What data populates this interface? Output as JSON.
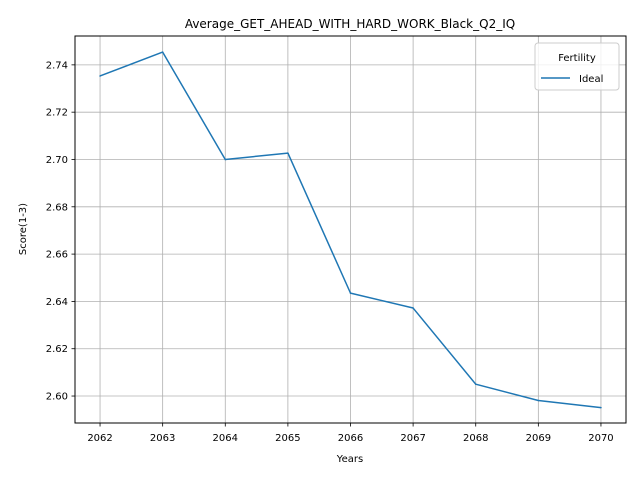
{
  "chart_data": {
    "type": "line",
    "title": "Average_GET_AHEAD_WITH_HARD_WORK_Black_Q2_IQ",
    "xlabel": "Years",
    "ylabel": "Score(1-3)",
    "x": [
      2062,
      2063,
      2064,
      2065,
      2066,
      2067,
      2068,
      2069,
      2070
    ],
    "xlim": [
      2061.6,
      2070.4
    ],
    "ylim": [
      2.5886,
      2.7522
    ],
    "x_ticks": [
      "2062",
      "2063",
      "2064",
      "2065",
      "2066",
      "2067",
      "2068",
      "2069",
      "2070"
    ],
    "y_ticks": [
      2.6,
      2.62,
      2.64,
      2.66,
      2.68,
      2.7,
      2.72,
      2.74
    ],
    "y_tick_labels": [
      "2.60",
      "2.62",
      "2.64",
      "2.66",
      "2.68",
      "2.70",
      "2.72",
      "2.74"
    ],
    "grid": true,
    "legend": {
      "title": "Fertility",
      "position": "top-right"
    },
    "series": [
      {
        "name": "Ideal",
        "color": "#1f77b4",
        "values": [
          2.7353,
          2.7454,
          2.7,
          2.7027,
          2.6435,
          2.6372,
          2.605,
          2.5981,
          2.5951
        ]
      }
    ]
  }
}
